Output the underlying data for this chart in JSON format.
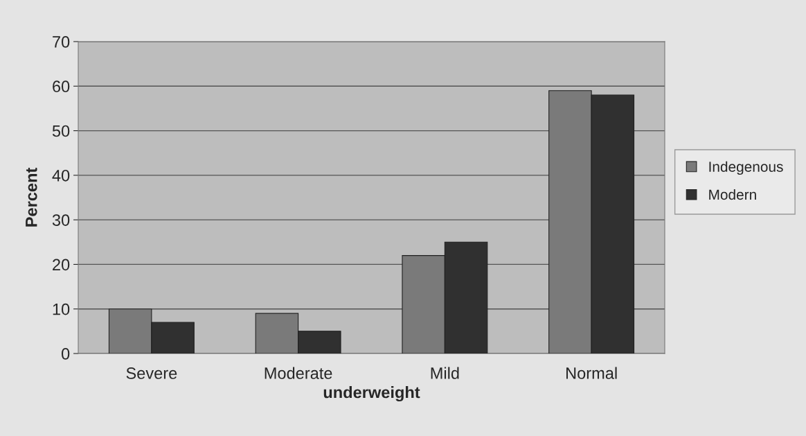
{
  "chart_data": {
    "type": "bar",
    "xlabel": "underweight",
    "ylabel": "Percent",
    "categories": [
      "Severe",
      "Moderate",
      "Mild",
      "Normal"
    ],
    "series": [
      {
        "name": "Indegenous",
        "color": "#7a7a7a",
        "values": [
          10,
          9,
          22,
          59
        ]
      },
      {
        "name": "Modern",
        "color": "#303030",
        "values": [
          7,
          5,
          25,
          58
        ]
      }
    ],
    "ylim": [
      0,
      70
    ],
    "yticks": [
      0,
      10,
      20,
      30,
      40,
      50,
      60,
      70
    ],
    "grid": "y",
    "legend": "right"
  }
}
